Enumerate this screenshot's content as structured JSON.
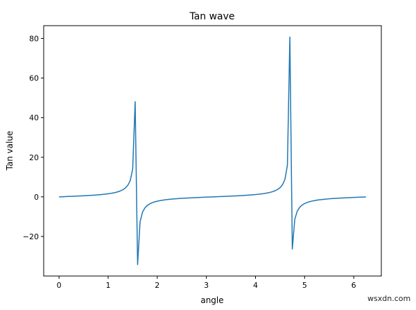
{
  "watermark": "wsxdn.com",
  "chart_data": {
    "type": "line",
    "title": "Tan wave",
    "xlabel": "angle",
    "ylabel": "Tan value",
    "xlim": [
      -0.3125,
      6.5625
    ],
    "ylim": [
      -39.98,
      86.46
    ],
    "xticks": [
      0,
      1,
      2,
      3,
      4,
      5,
      6
    ],
    "xtick_labels": [
      "0",
      "1",
      "2",
      "3",
      "4",
      "5",
      "6"
    ],
    "yticks": [
      -20,
      0,
      20,
      40,
      60,
      80
    ],
    "ytick_labels": [
      "−20",
      "0",
      "20",
      "40",
      "60",
      "80"
    ],
    "grid": false,
    "line_color": "#1f77b4",
    "series": [
      {
        "x": [
          0,
          0.05,
          0.1,
          0.15,
          0.2,
          0.25,
          0.3,
          0.35,
          0.4,
          0.45,
          0.5,
          0.55,
          0.6,
          0.65,
          0.7,
          0.75,
          0.8,
          0.85,
          0.9,
          0.95,
          1,
          1.05,
          1.1,
          1.15,
          1.2,
          1.25,
          1.3,
          1.35,
          1.4,
          1.45,
          1.5,
          1.55,
          1.6,
          1.65,
          1.7,
          1.75,
          1.8,
          1.85,
          1.9,
          1.95,
          2,
          2.05,
          2.1,
          2.15,
          2.2,
          2.25,
          2.3,
          2.35,
          2.4,
          2.45,
          2.5,
          2.55,
          2.6,
          2.65,
          2.7,
          2.75,
          2.8,
          2.85,
          2.9,
          2.95,
          3,
          3.05,
          3.1,
          3.15,
          3.2,
          3.25,
          3.3,
          3.35,
          3.4,
          3.45,
          3.5,
          3.55,
          3.6,
          3.65,
          3.7,
          3.75,
          3.8,
          3.85,
          3.9,
          3.95,
          4,
          4.05,
          4.1,
          4.15,
          4.2,
          4.25,
          4.3,
          4.35,
          4.4,
          4.45,
          4.5,
          4.55,
          4.6,
          4.65,
          4.7,
          4.75,
          4.8,
          4.85,
          4.9,
          4.95,
          5,
          5.05,
          5.1,
          5.15,
          5.2,
          5.25,
          5.3,
          5.35,
          5.4,
          5.45,
          5.5,
          5.55,
          5.6,
          5.65,
          5.7,
          5.75,
          5.8,
          5.85,
          5.9,
          5.95,
          6,
          6.05,
          6.1,
          6.15,
          6.2,
          6.25
        ],
        "y": [
          0,
          0.05,
          0.1,
          0.151,
          0.203,
          0.255,
          0.309,
          0.365,
          0.423,
          0.483,
          0.546,
          0.613,
          0.684,
          0.76,
          0.842,
          0.932,
          1.03,
          1.138,
          1.26,
          1.398,
          1.557,
          1.743,
          1.965,
          2.234,
          2.572,
          3.01,
          3.602,
          4.455,
          5.798,
          8.238,
          14.101,
          48.078,
          -34.233,
          -12.6,
          -7.697,
          -5.52,
          -4.286,
          -3.487,
          -2.927,
          -2.512,
          -2.185,
          -1.922,
          -1.71,
          -1.528,
          -1.374,
          -1.237,
          -1.119,
          -1.011,
          -0.916,
          -0.829,
          -0.747,
          -0.67,
          -0.602,
          -0.536,
          -0.473,
          -0.413,
          -0.356,
          -0.3,
          -0.247,
          -0.194,
          -0.143,
          -0.092,
          -0.042,
          0.008,
          0.058,
          0.109,
          0.16,
          0.211,
          0.264,
          0.319,
          0.375,
          0.433,
          0.494,
          0.557,
          0.625,
          0.697,
          0.774,
          0.858,
          0.949,
          1.049,
          1.158,
          1.284,
          1.425,
          1.588,
          1.778,
          2.006,
          2.285,
          2.636,
          3.096,
          3.721,
          4.637,
          6.12,
          8.86,
          15.98,
          80.71,
          -26.36,
          -11.38,
          -7.25,
          -5.29,
          -4.14,
          -3.381,
          -2.84,
          -2.449,
          -2.13,
          -1.886,
          -1.68,
          -1.51,
          -1.36,
          -1.215,
          -1.098,
          -0.995,
          -0.902,
          -0.815,
          -0.735,
          -0.66,
          -0.591,
          -0.525,
          -0.463,
          -0.403,
          -0.346,
          -0.291,
          -0.237,
          -0.185,
          -0.134,
          -0.083,
          -0.033
        ]
      }
    ]
  }
}
